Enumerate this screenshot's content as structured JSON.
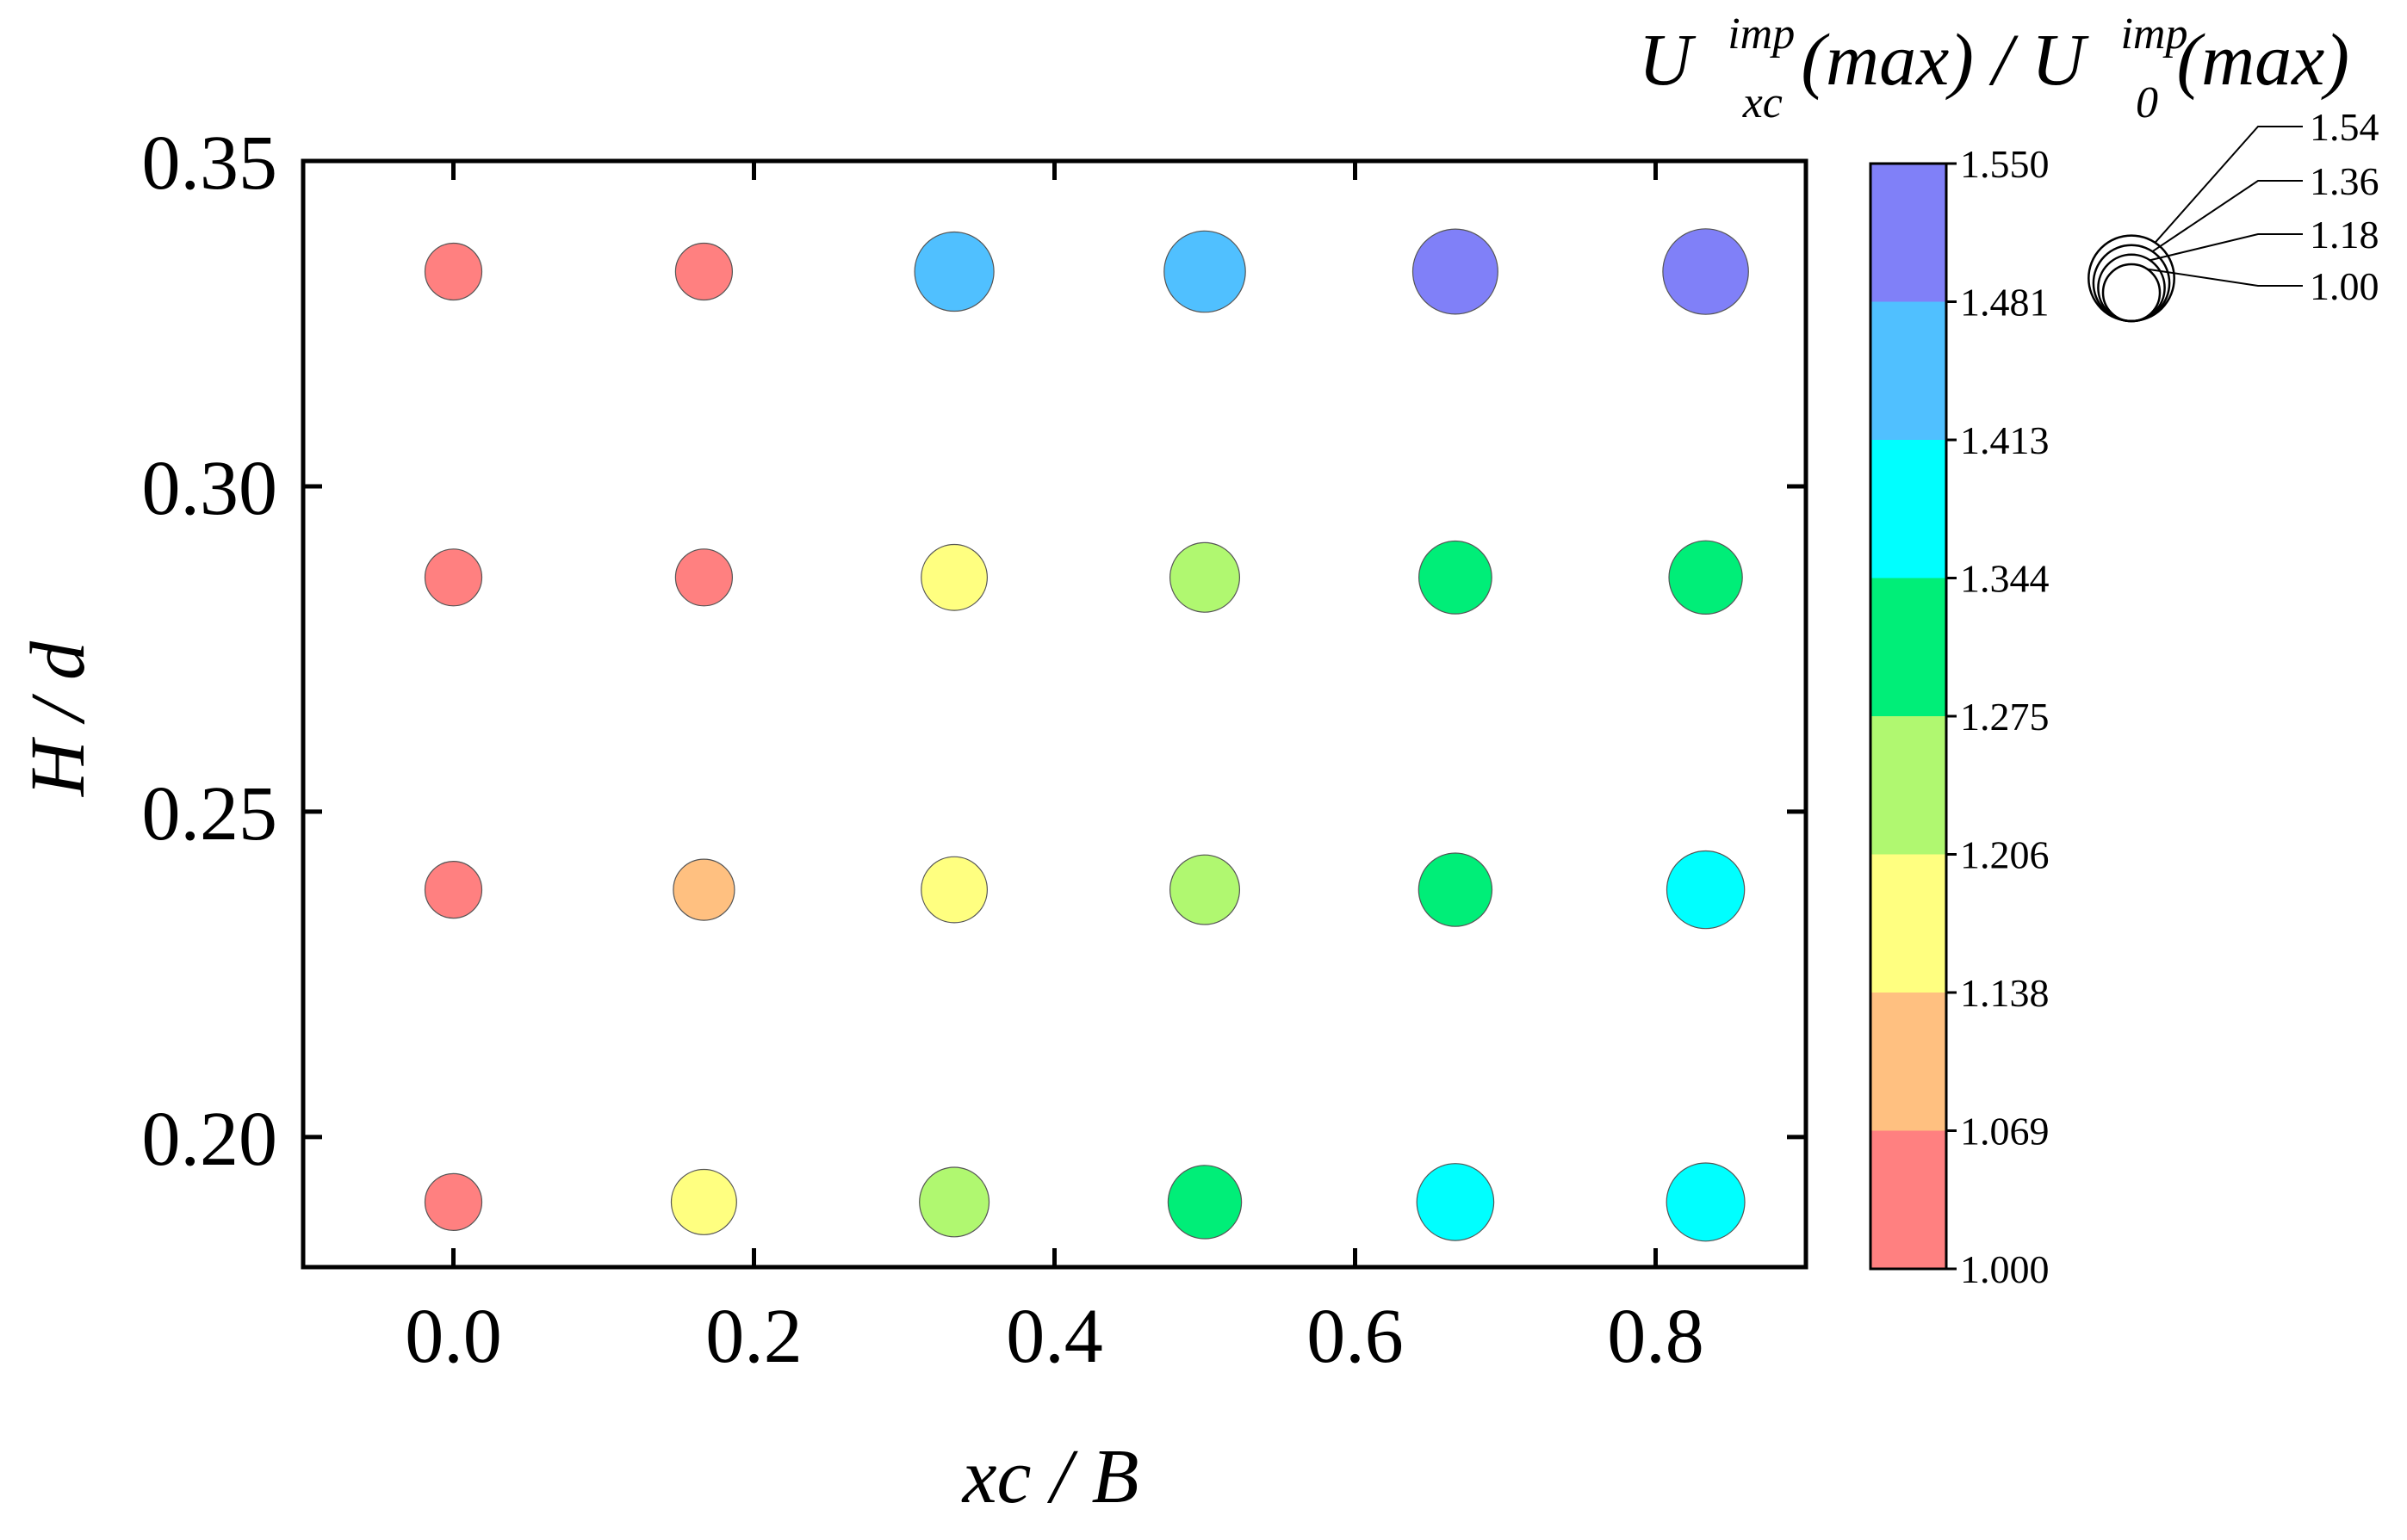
{
  "chart_data": {
    "type": "scatter",
    "title": "",
    "xlabel": "xc / B",
    "ylabel": "H / d",
    "xlim": [
      -0.1,
      0.9
    ],
    "ylim": [
      0.18,
      0.35
    ],
    "x_ticks": [
      "0.0",
      "0.2",
      "0.4",
      "0.6",
      "0.8"
    ],
    "x_tick_values": [
      0.0,
      0.2,
      0.4,
      0.6,
      0.8
    ],
    "y_ticks": [
      "0.20",
      "0.25",
      "0.30",
      "0.35"
    ],
    "y_tick_values": [
      0.2,
      0.25,
      0.3,
      0.35
    ],
    "grid": false,
    "x_columns": [
      0.0,
      0.1667,
      0.3333,
      0.5,
      0.6667,
      0.8333
    ],
    "rows": [
      {
        "y": 0.333,
        "values": [
          1.0,
          1.0,
          1.42,
          1.46,
          1.53,
          1.54
        ]
      },
      {
        "y": 0.286,
        "values": [
          1.0,
          1.0,
          1.17,
          1.24,
          1.3,
          1.31
        ]
      },
      {
        "y": 0.238,
        "values": [
          1.0,
          1.08,
          1.17,
          1.24,
          1.31,
          1.39
        ]
      },
      {
        "y": 0.19,
        "values": [
          1.0,
          1.16,
          1.24,
          1.31,
          1.38,
          1.4
        ]
      }
    ],
    "colorbar": {
      "title": {
        "U1": "U",
        "sup1": "imp",
        "sub1": "xc",
        "mid": "(max) / ",
        "U2": "U",
        "sup2": "imp",
        "sub2": "0",
        "end": "(max)"
      },
      "levels": [
        "1.000",
        "1.069",
        "1.138",
        "1.206",
        "1.275",
        "1.344",
        "1.413",
        "1.481",
        "1.550"
      ],
      "level_values": [
        1.0,
        1.069,
        1.138,
        1.206,
        1.275,
        1.344,
        1.413,
        1.481,
        1.55
      ],
      "colors": [
        "#FF8080",
        "#FFC080",
        "#FFFF80",
        "#B0F870",
        "#00EE78",
        "#00FFFF",
        "#50C0FF",
        "#8080F8"
      ]
    },
    "size_legend": {
      "labels": [
        "1.54",
        "1.36",
        "1.18",
        "1.00"
      ],
      "values": [
        1.54,
        1.36,
        1.18,
        1.0
      ]
    }
  }
}
